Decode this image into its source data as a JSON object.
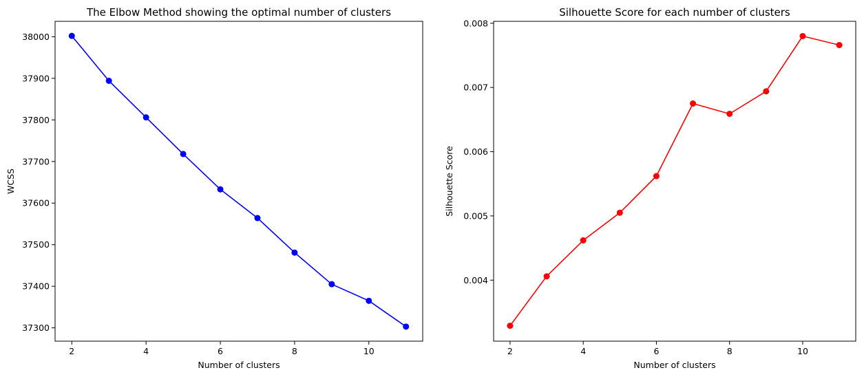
{
  "chart_data": [
    {
      "type": "line",
      "title": "The Elbow Method showing the optimal number of clusters",
      "xlabel": "Number of clusters",
      "ylabel": "WCSS",
      "x": [
        2,
        3,
        4,
        5,
        6,
        7,
        8,
        9,
        10,
        11
      ],
      "series": [
        {
          "values": [
            38002,
            37894,
            37806,
            37718,
            37633,
            37564,
            37481,
            37405,
            37365,
            37303
          ],
          "color": "#0000ff",
          "marker": "circle"
        }
      ],
      "xlim": [
        1.55,
        11.45
      ],
      "ylim": [
        37268,
        38037
      ],
      "xticks": [
        2,
        4,
        6,
        8,
        10
      ],
      "yticks": [
        37300,
        37400,
        37500,
        37600,
        37700,
        37800,
        37900,
        38000
      ],
      "ytick_labels": [
        "37300",
        "37400",
        "37500",
        "37600",
        "37700",
        "37800",
        "37900",
        "38000"
      ],
      "grid": false
    },
    {
      "type": "line",
      "title": "Silhouette Score for each number of clusters",
      "xlabel": "Number of clusters",
      "ylabel": "Silhouette Score",
      "x": [
        2,
        3,
        4,
        5,
        6,
        7,
        8,
        9,
        10,
        11
      ],
      "series": [
        {
          "values": [
            0.00329,
            0.00406,
            0.00462,
            0.00505,
            0.00562,
            0.00675,
            0.00659,
            0.00694,
            0.0078,
            0.00766
          ],
          "color": "#ff0000",
          "marker": "circle"
        }
      ],
      "xlim": [
        1.55,
        11.45
      ],
      "ylim": [
        0.00305,
        0.00803
      ],
      "xticks": [
        2,
        4,
        6,
        8,
        10
      ],
      "yticks": [
        0.004,
        0.005,
        0.006,
        0.007,
        0.008
      ],
      "ytick_labels": [
        "0.004",
        "0.005",
        "0.006",
        "0.007",
        "0.008"
      ],
      "grid": false
    }
  ]
}
